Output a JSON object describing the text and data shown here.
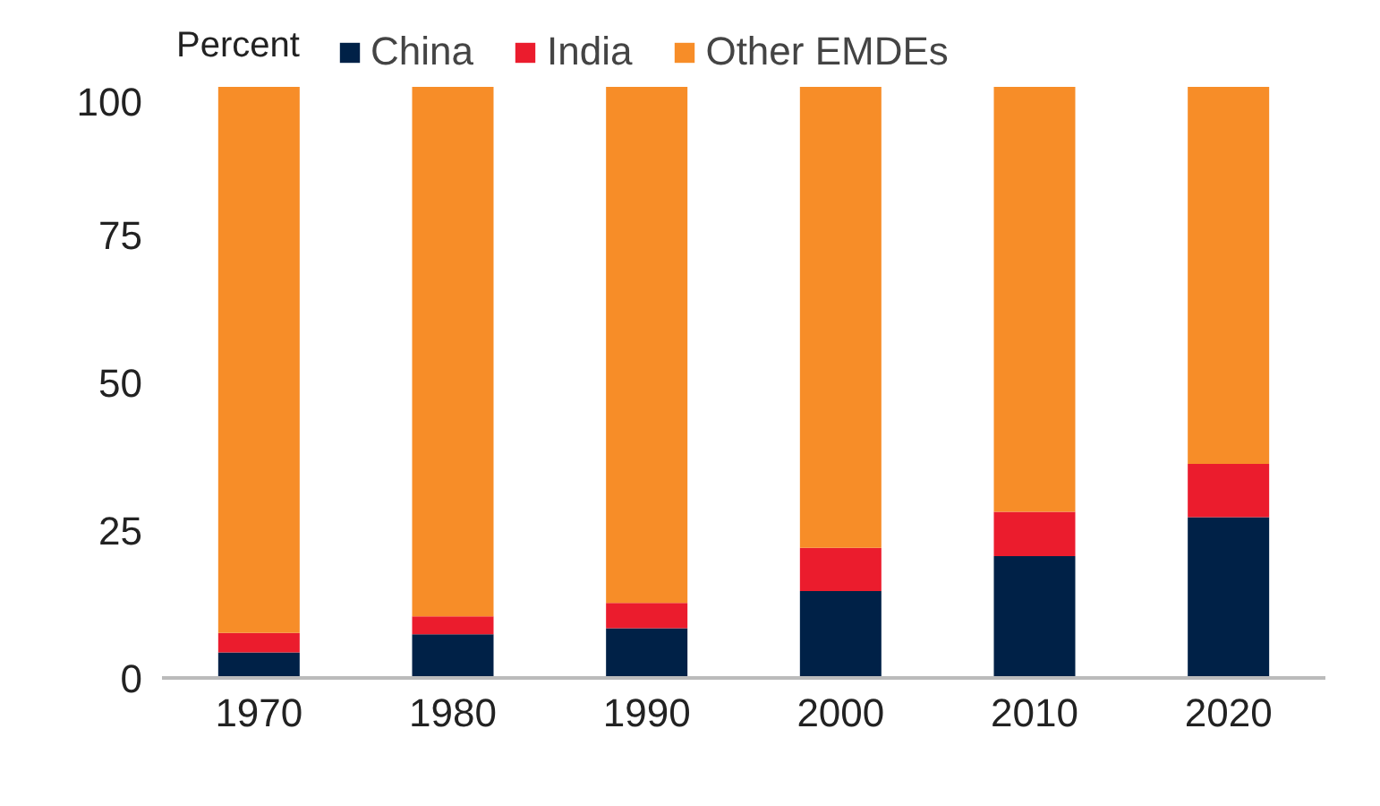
{
  "chart_data": {
    "type": "bar",
    "stacked": true,
    "ylabel": "Percent",
    "categories": [
      "1970",
      "1980",
      "1990",
      "2000",
      "2010",
      "2020"
    ],
    "series": [
      {
        "name": "China",
        "color": "#002147",
        "values": [
          4.3,
          7.4,
          8.4,
          14.7,
          20.6,
          27.2
        ]
      },
      {
        "name": "India",
        "color": "#eb1c2d",
        "values": [
          3.3,
          3.0,
          4.3,
          7.3,
          7.5,
          9.0
        ]
      },
      {
        "name": "Other EMDEs",
        "color": "#f78d28",
        "values": [
          92.4,
          89.6,
          87.3,
          78.0,
          71.9,
          63.8
        ]
      }
    ],
    "ylim": [
      0,
      100
    ],
    "yticks": [
      0,
      25,
      50,
      75,
      100
    ],
    "grid": false,
    "legend": "top"
  }
}
